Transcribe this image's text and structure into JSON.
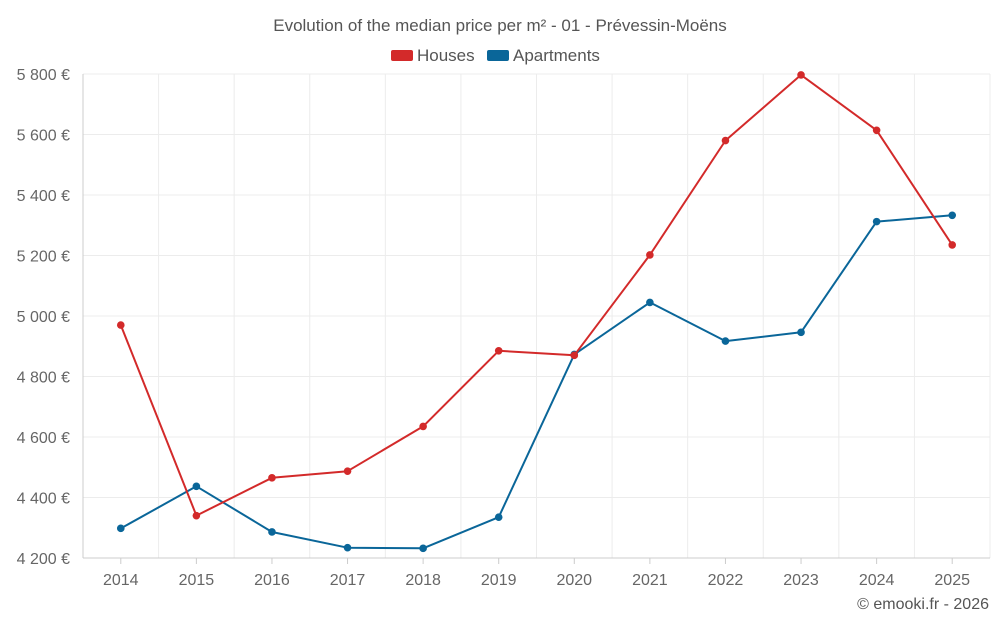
{
  "chart_data": {
    "type": "line",
    "title": "Evolution of the median price per m² - 01 - Prévessin-Moëns",
    "xlabel": "",
    "ylabel": "",
    "categories": [
      "2014",
      "2015",
      "2016",
      "2017",
      "2018",
      "2019",
      "2020",
      "2021",
      "2022",
      "2023",
      "2024",
      "2025"
    ],
    "ylim": [
      4200,
      5800
    ],
    "yticks": [
      4200,
      4400,
      4600,
      4800,
      5000,
      5200,
      5400,
      5600,
      5800
    ],
    "ytick_labels": [
      "4 200 €",
      "4 400 €",
      "4 600 €",
      "4 800 €",
      "5 000 €",
      "5 200 €",
      "5 400 €",
      "5 600 €",
      "5 800 €"
    ],
    "grid": true,
    "legend_position": "top-center",
    "series": [
      {
        "name": "Houses",
        "color": "#d32a2a",
        "values": [
          4970,
          4340,
          4465,
          4487,
          4635,
          4885,
          4870,
          5202,
          5580,
          5797,
          5614,
          5235
        ]
      },
      {
        "name": "Apartments",
        "color": "#0a6699",
        "values": [
          4298,
          4437,
          4286,
          4234,
          4232,
          4335,
          4873,
          5045,
          4917,
          4946,
          5312,
          5333
        ]
      }
    ]
  },
  "credit": "© emooki.fr - 2026"
}
